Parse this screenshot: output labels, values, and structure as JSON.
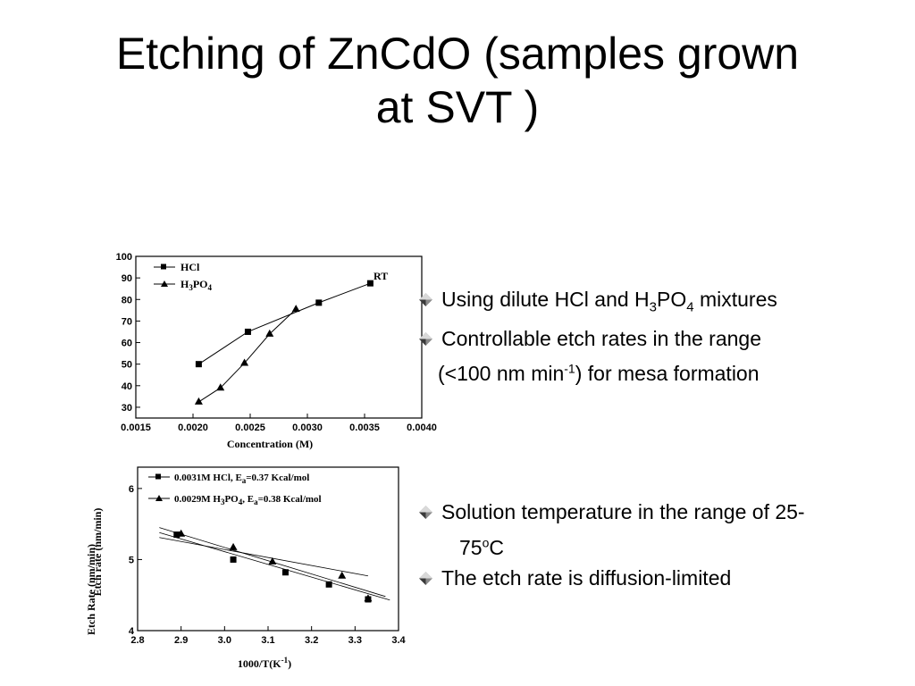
{
  "title": {
    "line1": "Etching of ZnCdO (samples grown",
    "line2": "at SVT )"
  },
  "bullets_top": {
    "item1": {
      "pre": "Using dilute HCl and H",
      "sub1": "3",
      "mid": "PO",
      "sub2": "4",
      "post": " mixtures"
    },
    "item2": {
      "line1": "Controllable etch rates  in the range",
      "line2_pre": "(<100 nm min",
      "line2_sup": "-1",
      "line2_post": ") for mesa formation"
    }
  },
  "bullets_bottom": {
    "item1": {
      "line1": "Solution temperature in the range of 25-",
      "line2_pre": "75",
      "line2_sup": "o",
      "line2_post": "C"
    },
    "item2": {
      "text": "The etch rate is diffusion-limited"
    }
  },
  "chart_data": [
    {
      "type": "line",
      "xlabel": "Concentration (M)",
      "ylabel": "Etch Rate  (nm/min)",
      "annotation": "RT",
      "xlim": [
        0.0015,
        0.004
      ],
      "ylim": [
        25,
        100
      ],
      "x_ticks": [
        "0.0015",
        "0.0020",
        "0.0025",
        "0.0030",
        "0.0035",
        "0.0040"
      ],
      "y_ticks": [
        "30",
        "40",
        "50",
        "60",
        "70",
        "80",
        "90",
        "100"
      ],
      "series": [
        {
          "name": "HCl",
          "name_main": "HCl",
          "marker": "square",
          "x": [
            0.00205,
            0.00248,
            0.0031,
            0.00355
          ],
          "y": [
            50,
            65,
            78.5,
            87.5
          ]
        },
        {
          "name": "H3PO4",
          "name_main": "H",
          "name_sub1": "3",
          "name_mid": "PO",
          "name_sub2": "4",
          "marker": "triangle",
          "x": [
            0.00205,
            0.00224,
            0.00245,
            0.00267,
            0.0029
          ],
          "y": [
            32.5,
            39,
            50.5,
            64,
            75.5
          ]
        }
      ]
    },
    {
      "type": "scatter",
      "xlabel": "1000/T(K",
      "xlabel_sup": "-1",
      "xlabel_end": ")",
      "ylabel": "Etch rate (nm/min)",
      "xlim": [
        2.8,
        3.4
      ],
      "ylim": [
        4,
        6.3
      ],
      "x_ticks": [
        "2.8",
        "2.9",
        "3.0",
        "3.1",
        "3.2",
        "3.3",
        "3.4"
      ],
      "y_ticks": [
        "4",
        "5",
        "6"
      ],
      "series": [
        {
          "name": "0.0031M HCl, Ea=0.37 Kcal/mol",
          "legend_pre": "0.0031M HCl, E",
          "legend_sub": "a",
          "legend_post": "=0.37 Kcal/mol",
          "marker": "square",
          "x": [
            2.89,
            3.02,
            3.14,
            3.24,
            3.33
          ],
          "y": [
            5.35,
            5.0,
            4.82,
            4.65,
            4.44
          ],
          "fit_x": [
            2.85,
            3.38
          ],
          "fit_y": [
            5.38,
            4.43
          ]
        },
        {
          "name": "0.0029M H3PO4, Ea=0.38 Kcal/mol",
          "legend_pre": "0.0029M H",
          "legend_sub1": "3",
          "legend_mid": "PO",
          "legend_sub2": "4",
          "legend_mid2": ", E",
          "legend_sub3": "a",
          "legend_post": "=0.38 Kcal/mol",
          "marker": "triangle",
          "x": [
            2.9,
            3.02,
            3.11,
            3.27,
            3.33
          ],
          "y": [
            5.36,
            5.17,
            4.97,
            4.77,
            4.45
          ],
          "fit_x": [
            2.85,
            3.33
          ],
          "fit_y": [
            5.31,
            4.77
          ],
          "fit2_x": [
            2.85,
            3.37
          ],
          "fit2_y": [
            5.45,
            4.48
          ]
        }
      ]
    }
  ]
}
